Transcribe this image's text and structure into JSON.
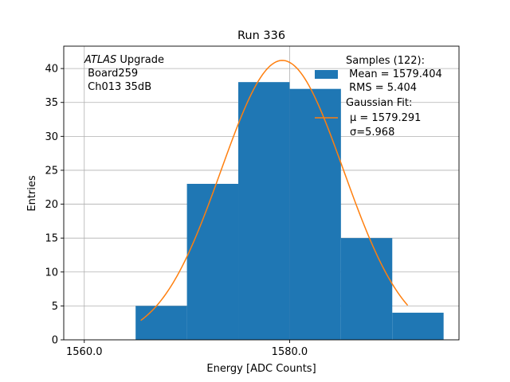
{
  "chart_data": {
    "type": "bar",
    "title": "Run 336",
    "xlabel": "Energy [ADC Counts]",
    "ylabel": "Entries",
    "xlim": [
      1558.0,
      1596.5
    ],
    "ylim": [
      0,
      43.3
    ],
    "grid": true,
    "x_ticks": [
      {
        "value": 1560.0,
        "label": "1560.0"
      },
      {
        "value": 1580.0,
        "label": "1580.0"
      }
    ],
    "y_ticks": [
      {
        "value": 0,
        "label": "0"
      },
      {
        "value": 5,
        "label": "5"
      },
      {
        "value": 10,
        "label": "10"
      },
      {
        "value": 15,
        "label": "15"
      },
      {
        "value": 20,
        "label": "20"
      },
      {
        "value": 25,
        "label": "25"
      },
      {
        "value": 30,
        "label": "30"
      },
      {
        "value": 35,
        "label": "35"
      },
      {
        "value": 40,
        "label": "40"
      }
    ],
    "bins": [
      {
        "x0": 1565,
        "x1": 1570,
        "count": 5
      },
      {
        "x0": 1570,
        "x1": 1575,
        "count": 23
      },
      {
        "x0": 1575,
        "x1": 1580,
        "count": 38
      },
      {
        "x0": 1580,
        "x1": 1585,
        "count": 37
      },
      {
        "x0": 1585,
        "x1": 1590,
        "count": 15
      },
      {
        "x0": 1590,
        "x1": 1595,
        "count": 4
      }
    ],
    "fit": {
      "amplitude": 41.2,
      "mu": 1579.291,
      "sigma": 5.968,
      "x_range": [
        1565.5,
        1591.5
      ]
    },
    "colors": {
      "bars": "#1f77b4",
      "fit": "#ff7f0e",
      "grid": "#b0b0b0"
    },
    "annotation": {
      "italic": "ATLAS",
      "rest": " Upgrade",
      "lines": [
        " Board259",
        " Ch013 35dB"
      ]
    },
    "legend": {
      "placement": "top-right",
      "hist_lines": [
        "Samples (122):",
        " Mean = 1579.404",
        " RMS = 5.404"
      ],
      "fit_lines": [
        "Gaussian Fit:",
        "μ = 1579.291",
        "σ=5.968"
      ]
    }
  }
}
